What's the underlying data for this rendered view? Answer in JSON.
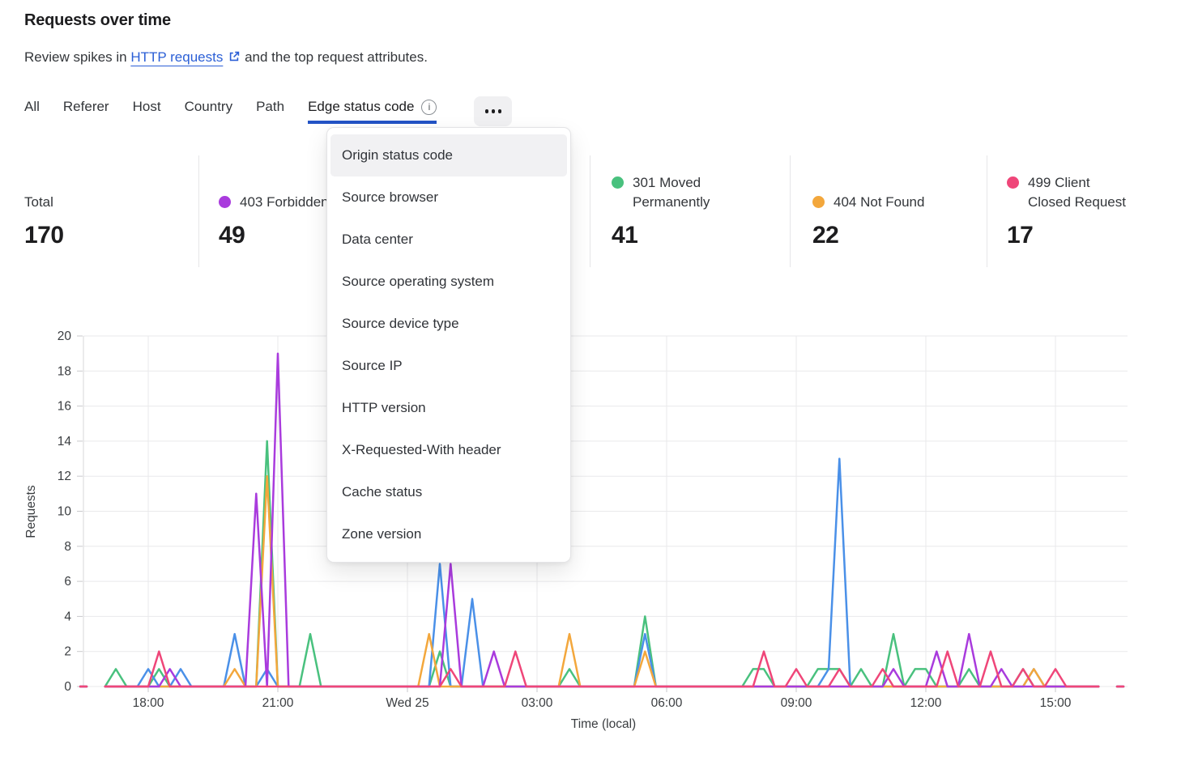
{
  "header": {
    "title": "Requests over time",
    "subtitle": {
      "prefix": "Review spikes in ",
      "link": "HTTP requests",
      "suffix": " and the top request attributes."
    }
  },
  "tabs": {
    "items": [
      "All",
      "Referer",
      "Host",
      "Country",
      "Path"
    ],
    "active": {
      "label": "Edge status code",
      "info_icon_glyph": "i"
    }
  },
  "stats": {
    "total": {
      "label": "Total",
      "value": "170"
    },
    "series": [
      {
        "label": "403 Forbidden",
        "value": "49",
        "color": "#A93BDD"
      },
      {
        "label": "",
        "value": "",
        "color": ""
      },
      {
        "label": "301 Moved Permanently",
        "value": "41",
        "color": "#49C17E"
      },
      {
        "label": "404 Not Found",
        "value": "22",
        "color": "#F3A73C"
      },
      {
        "label": "499 Client Closed Request",
        "value": "17",
        "color": "#EF4679"
      }
    ]
  },
  "menu": {
    "highlighted": "Origin status code",
    "items": [
      "Origin status code",
      "Source browser",
      "Data center",
      "Source operating system",
      "Source device type",
      "Source IP",
      "HTTP version",
      "X-Requested-With header",
      "Cache status",
      "Zone version"
    ]
  },
  "chart_data": {
    "type": "line",
    "xlabel": "Time (local)",
    "ylabel": "Requests",
    "ylim": [
      0,
      20
    ],
    "y_tick_step": 2,
    "grid": true,
    "legend_position": "stats-row-above-chart",
    "x_start": "16:30",
    "bucket_minutes": 15,
    "buckets": 96,
    "x_ticks": [
      {
        "t": "18:00",
        "label": "18:00"
      },
      {
        "t": "21:00",
        "label": "21:00"
      },
      {
        "t": "00:00",
        "label": "Wed 25"
      },
      {
        "t": "03:00",
        "label": "03:00"
      },
      {
        "t": "06:00",
        "label": "06:00"
      },
      {
        "t": "09:00",
        "label": "09:00"
      },
      {
        "t": "12:00",
        "label": "12:00"
      },
      {
        "t": "15:00",
        "label": "15:00"
      }
    ],
    "series": [
      {
        "name": "301 Moved Permanently",
        "color": "#49C17E",
        "points": [
          {
            "t": "17:15",
            "v": 1
          },
          {
            "t": "18:15",
            "v": 1
          },
          {
            "t": "20:45",
            "v": 14
          },
          {
            "t": "21:45",
            "v": 3
          },
          {
            "t": "00:45",
            "v": 2
          },
          {
            "t": "03:45",
            "v": 1
          },
          {
            "t": "05:30",
            "v": 4
          },
          {
            "t": "08:00",
            "v": 1
          },
          {
            "t": "08:15",
            "v": 1
          },
          {
            "t": "09:30",
            "v": 1
          },
          {
            "t": "09:45",
            "v": 1
          },
          {
            "t": "10:00",
            "v": 1
          },
          {
            "t": "10:30",
            "v": 1
          },
          {
            "t": "11:15",
            "v": 3
          },
          {
            "t": "11:45",
            "v": 1
          },
          {
            "t": "12:00",
            "v": 1
          },
          {
            "t": "13:00",
            "v": 1
          },
          {
            "t": "14:15",
            "v": 1
          }
        ]
      },
      {
        "name": "",
        "color": "#4A90E8",
        "points": [
          {
            "t": "18:00",
            "v": 1
          },
          {
            "t": "18:45",
            "v": 1
          },
          {
            "t": "20:00",
            "v": 3
          },
          {
            "t": "20:45",
            "v": 1
          },
          {
            "t": "00:45",
            "v": 7
          },
          {
            "t": "01:30",
            "v": 5
          },
          {
            "t": "05:30",
            "v": 3
          },
          {
            "t": "09:45",
            "v": 1
          },
          {
            "t": "10:00",
            "v": 13
          },
          {
            "t": "14:30",
            "v": 1
          }
        ]
      },
      {
        "name": "404 Not Found",
        "color": "#F3A73C",
        "points": [
          {
            "t": "20:00",
            "v": 1
          },
          {
            "t": "20:45",
            "v": 12
          },
          {
            "t": "00:30",
            "v": 3
          },
          {
            "t": "03:45",
            "v": 3
          },
          {
            "t": "05:30",
            "v": 2
          },
          {
            "t": "14:30",
            "v": 1
          }
        ]
      },
      {
        "name": "403 Forbidden",
        "color": "#A93BDD",
        "points": [
          {
            "t": "18:30",
            "v": 1
          },
          {
            "t": "20:30",
            "v": 11
          },
          {
            "t": "21:00",
            "v": 19
          },
          {
            "t": "01:00",
            "v": 7
          },
          {
            "t": "02:00",
            "v": 2
          },
          {
            "t": "11:15",
            "v": 1
          },
          {
            "t": "12:15",
            "v": 2
          },
          {
            "t": "13:00",
            "v": 3
          },
          {
            "t": "13:45",
            "v": 1
          }
        ]
      },
      {
        "name": "499 Client Closed Request",
        "color": "#EF4679",
        "points": [
          {
            "t": "18:15",
            "v": 2
          },
          {
            "t": "01:00",
            "v": 1
          },
          {
            "t": "02:30",
            "v": 2
          },
          {
            "t": "08:15",
            "v": 2
          },
          {
            "t": "09:00",
            "v": 1
          },
          {
            "t": "10:00",
            "v": 1
          },
          {
            "t": "11:00",
            "v": 1
          },
          {
            "t": "12:30",
            "v": 2
          },
          {
            "t": "13:30",
            "v": 2
          },
          {
            "t": "14:15",
            "v": 1
          },
          {
            "t": "15:00",
            "v": 1
          }
        ]
      }
    ]
  },
  "theme": {
    "link": "#2B5FD6",
    "tab_underline": "#2353C5",
    "grid": "#E9E9EB",
    "axis": "#D7D7D9",
    "tick": "#C9C9CC",
    "text": "#1D1D1F",
    "muted": "#33363A"
  }
}
